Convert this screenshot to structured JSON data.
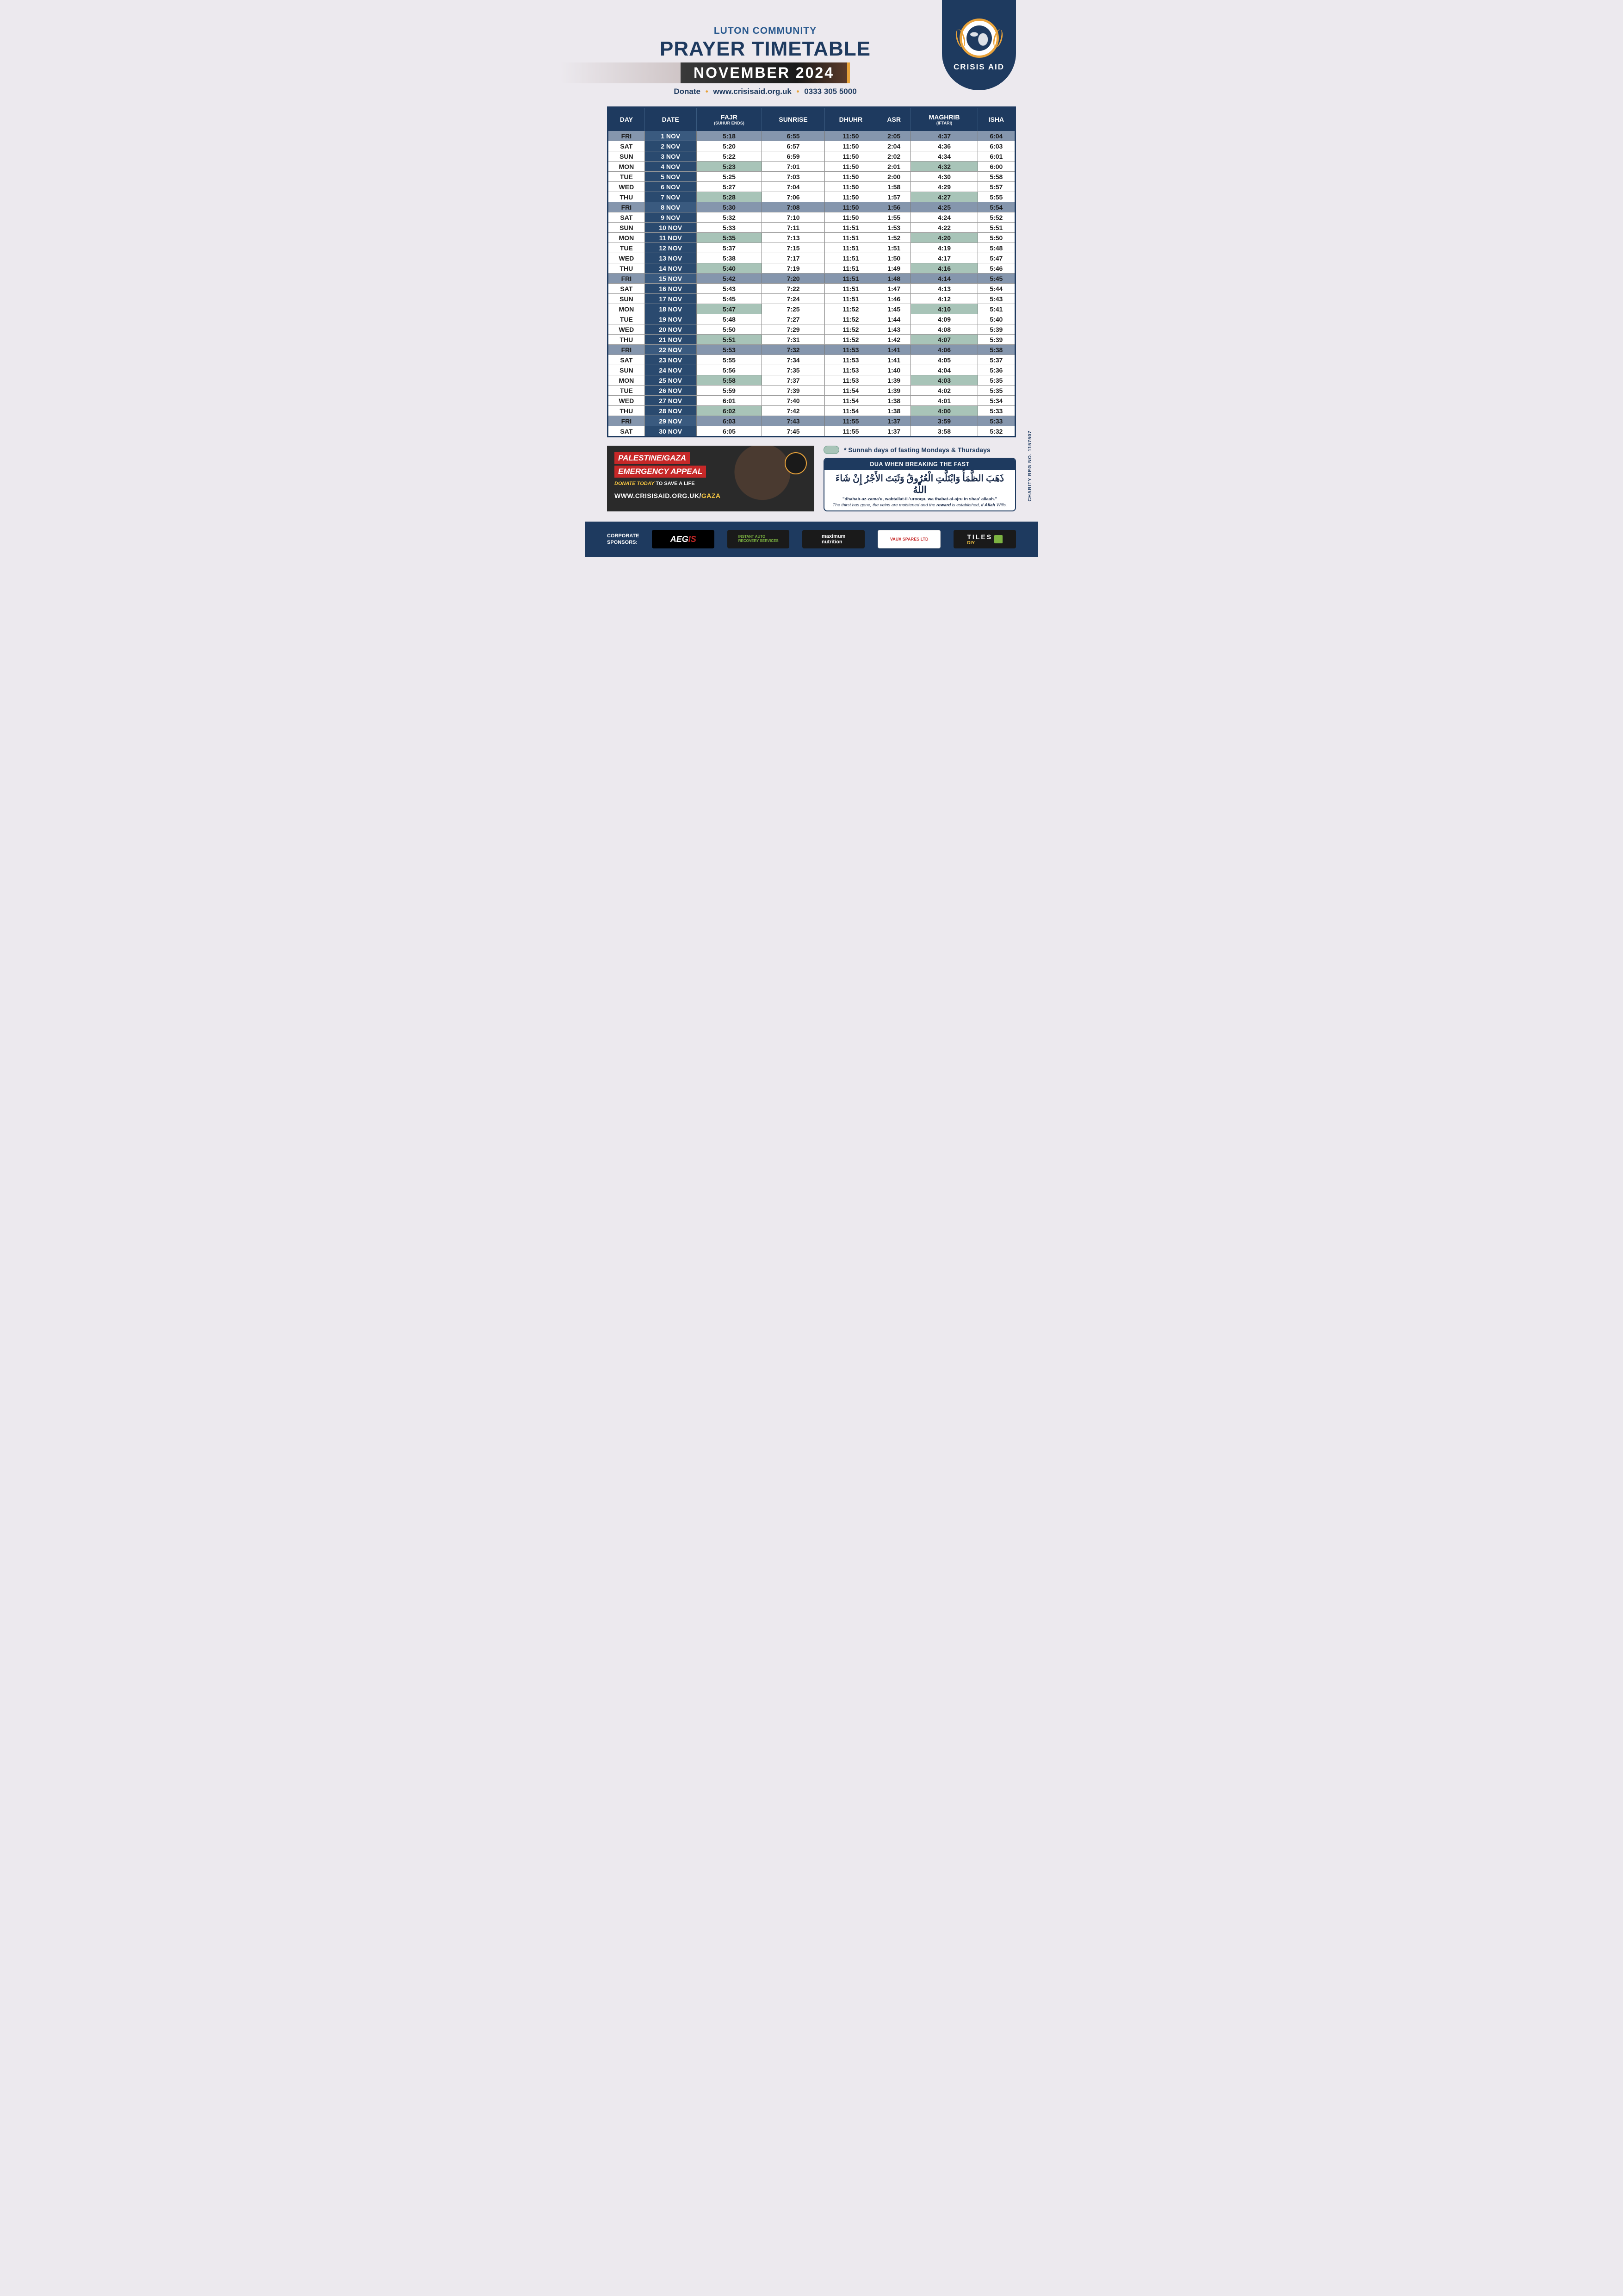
{
  "header": {
    "subtitle": "LUTON COMMUNITY",
    "title": "PRAYER TIMETABLE",
    "month": "NOVEMBER 2024",
    "donate_label": "Donate",
    "website": "www.crisisaid.org.uk",
    "phone": "0333 305 5000",
    "org_name": "CRISIS AID"
  },
  "table": {
    "columns": [
      {
        "label": "DAY"
      },
      {
        "label": "DATE"
      },
      {
        "label": "FAJR",
        "sub": "(SUHUR ENDS)"
      },
      {
        "label": "SUNRISE"
      },
      {
        "label": "DHUHR"
      },
      {
        "label": "ASR"
      },
      {
        "label": "MAGHRIB",
        "sub": "(IFTARI)"
      },
      {
        "label": "ISHA"
      }
    ],
    "rows": [
      {
        "day": "FRI",
        "date": "1 NOV",
        "fajr": "5:18",
        "sunrise": "6:55",
        "dhuhr": "11:50",
        "asr": "2:05",
        "maghrib": "4:37",
        "isha": "6:04",
        "friday": true
      },
      {
        "day": "SAT",
        "date": "2 NOV",
        "fajr": "5:20",
        "sunrise": "6:57",
        "dhuhr": "11:50",
        "asr": "2:04",
        "maghrib": "4:36",
        "isha": "6:03"
      },
      {
        "day": "SUN",
        "date": "3 NOV",
        "fajr": "5:22",
        "sunrise": "6:59",
        "dhuhr": "11:50",
        "asr": "2:02",
        "maghrib": "4:34",
        "isha": "6:01"
      },
      {
        "day": "MON",
        "date": "4 NOV",
        "fajr": "5:23",
        "sunrise": "7:01",
        "dhuhr": "11:50",
        "asr": "2:01",
        "maghrib": "4:32",
        "isha": "6:00",
        "sunnah": true
      },
      {
        "day": "TUE",
        "date": "5 NOV",
        "fajr": "5:25",
        "sunrise": "7:03",
        "dhuhr": "11:50",
        "asr": "2:00",
        "maghrib": "4:30",
        "isha": "5:58"
      },
      {
        "day": "WED",
        "date": "6 NOV",
        "fajr": "5:27",
        "sunrise": "7:04",
        "dhuhr": "11:50",
        "asr": "1:58",
        "maghrib": "4:29",
        "isha": "5:57"
      },
      {
        "day": "THU",
        "date": "7 NOV",
        "fajr": "5:28",
        "sunrise": "7:06",
        "dhuhr": "11:50",
        "asr": "1:57",
        "maghrib": "4:27",
        "isha": "5:55",
        "sunnah": true
      },
      {
        "day": "FRI",
        "date": "8 NOV",
        "fajr": "5:30",
        "sunrise": "7:08",
        "dhuhr": "11:50",
        "asr": "1:56",
        "maghrib": "4:25",
        "isha": "5:54",
        "friday": true
      },
      {
        "day": "SAT",
        "date": "9 NOV",
        "fajr": "5:32",
        "sunrise": "7:10",
        "dhuhr": "11:50",
        "asr": "1:55",
        "maghrib": "4:24",
        "isha": "5:52"
      },
      {
        "day": "SUN",
        "date": "10 NOV",
        "fajr": "5:33",
        "sunrise": "7:11",
        "dhuhr": "11:51",
        "asr": "1:53",
        "maghrib": "4:22",
        "isha": "5:51"
      },
      {
        "day": "MON",
        "date": "11 NOV",
        "fajr": "5:35",
        "sunrise": "7:13",
        "dhuhr": "11:51",
        "asr": "1:52",
        "maghrib": "4:20",
        "isha": "5:50",
        "sunnah": true
      },
      {
        "day": "TUE",
        "date": "12 NOV",
        "fajr": "5:37",
        "sunrise": "7:15",
        "dhuhr": "11:51",
        "asr": "1:51",
        "maghrib": "4:19",
        "isha": "5:48"
      },
      {
        "day": "WED",
        "date": "13 NOV",
        "fajr": "5:38",
        "sunrise": "7:17",
        "dhuhr": "11:51",
        "asr": "1:50",
        "maghrib": "4:17",
        "isha": "5:47"
      },
      {
        "day": "THU",
        "date": "14 NOV",
        "fajr": "5:40",
        "sunrise": "7:19",
        "dhuhr": "11:51",
        "asr": "1:49",
        "maghrib": "4:16",
        "isha": "5:46",
        "sunnah": true
      },
      {
        "day": "FRI",
        "date": "15 NOV",
        "fajr": "5:42",
        "sunrise": "7:20",
        "dhuhr": "11:51",
        "asr": "1:48",
        "maghrib": "4:14",
        "isha": "5:45",
        "friday": true
      },
      {
        "day": "SAT",
        "date": "16 NOV",
        "fajr": "5:43",
        "sunrise": "7:22",
        "dhuhr": "11:51",
        "asr": "1:47",
        "maghrib": "4:13",
        "isha": "5:44"
      },
      {
        "day": "SUN",
        "date": "17 NOV",
        "fajr": "5:45",
        "sunrise": "7:24",
        "dhuhr": "11:51",
        "asr": "1:46",
        "maghrib": "4:12",
        "isha": "5:43"
      },
      {
        "day": "MON",
        "date": "18 NOV",
        "fajr": "5:47",
        "sunrise": "7:25",
        "dhuhr": "11:52",
        "asr": "1:45",
        "maghrib": "4:10",
        "isha": "5:41",
        "sunnah": true
      },
      {
        "day": "TUE",
        "date": "19 NOV",
        "fajr": "5:48",
        "sunrise": "7:27",
        "dhuhr": "11:52",
        "asr": "1:44",
        "maghrib": "4:09",
        "isha": "5:40"
      },
      {
        "day": "WED",
        "date": "20 NOV",
        "fajr": "5:50",
        "sunrise": "7:29",
        "dhuhr": "11:52",
        "asr": "1:43",
        "maghrib": "4:08",
        "isha": "5:39"
      },
      {
        "day": "THU",
        "date": "21 NOV",
        "fajr": "5:51",
        "sunrise": "7:31",
        "dhuhr": "11:52",
        "asr": "1:42",
        "maghrib": "4:07",
        "isha": "5:39",
        "sunnah": true
      },
      {
        "day": "FRI",
        "date": "22 NOV",
        "fajr": "5:53",
        "sunrise": "7:32",
        "dhuhr": "11:53",
        "asr": "1:41",
        "maghrib": "4:06",
        "isha": "5:38",
        "friday": true
      },
      {
        "day": "SAT",
        "date": "23 NOV",
        "fajr": "5:55",
        "sunrise": "7:34",
        "dhuhr": "11:53",
        "asr": "1:41",
        "maghrib": "4:05",
        "isha": "5:37"
      },
      {
        "day": "SUN",
        "date": "24 NOV",
        "fajr": "5:56",
        "sunrise": "7:35",
        "dhuhr": "11:53",
        "asr": "1:40",
        "maghrib": "4:04",
        "isha": "5:36"
      },
      {
        "day": "MON",
        "date": "25 NOV",
        "fajr": "5:58",
        "sunrise": "7:37",
        "dhuhr": "11:53",
        "asr": "1:39",
        "maghrib": "4:03",
        "isha": "5:35",
        "sunnah": true
      },
      {
        "day": "TUE",
        "date": "26 NOV",
        "fajr": "5:59",
        "sunrise": "7:39",
        "dhuhr": "11:54",
        "asr": "1:39",
        "maghrib": "4:02",
        "isha": "5:35"
      },
      {
        "day": "WED",
        "date": "27 NOV",
        "fajr": "6:01",
        "sunrise": "7:40",
        "dhuhr": "11:54",
        "asr": "1:38",
        "maghrib": "4:01",
        "isha": "5:34"
      },
      {
        "day": "THU",
        "date": "28 NOV",
        "fajr": "6:02",
        "sunrise": "7:42",
        "dhuhr": "11:54",
        "asr": "1:38",
        "maghrib": "4:00",
        "isha": "5:33",
        "sunnah": true
      },
      {
        "day": "FRI",
        "date": "29 NOV",
        "fajr": "6:03",
        "sunrise": "7:43",
        "dhuhr": "11:55",
        "asr": "1:37",
        "maghrib": "3:59",
        "isha": "5:33",
        "friday": true
      },
      {
        "day": "SAT",
        "date": "30 NOV",
        "fajr": "6:05",
        "sunrise": "7:45",
        "dhuhr": "11:55",
        "asr": "1:37",
        "maghrib": "3:58",
        "isha": "5:32"
      }
    ]
  },
  "appeal": {
    "line1": "PALESTINE/GAZA",
    "line2": "EMERGENCY APPEAL",
    "sub_yellow": "DONATE TODAY",
    "sub_white": " TO SAVE A LIFE",
    "url_prefix": "WWW.CRISISAID.ORG.UK/",
    "url_suffix": "GAZA"
  },
  "sunnah_note": {
    "prefix": "* ",
    "b1": "Sunnah",
    "mid": " days of fasting ",
    "b2": "Mondays",
    "amp": " & ",
    "b3": "Thursdays"
  },
  "dua": {
    "heading": "DUA WHEN BREAKING THE FAST",
    "arabic": "ذَهَبَ الظَّمَأُ وَابْتَلَّتِ الْعُرُوقُ وَثَبَتَ الأَجْرُ إِنْ شَاءَ اللَّهُ",
    "translit": "\"dhahab-az-zama'u, wabtallat-il-'urooqu, wa thabat-al-ajru in shaa' allaah.\"",
    "trans_a": "The thirst has gone, the veins are moistened and the ",
    "trans_b": "reward",
    "trans_c": " is established, if ",
    "trans_d": "Allah",
    "trans_e": " Wills."
  },
  "charity_reg": "CHARITY REG NO. 1157507",
  "sponsors": {
    "label": "CORPORATE\nSPONSORS:",
    "aegis_a": "AEG",
    "aegis_b": "IS",
    "aegis_sub": "TRAINING",
    "instant": "INSTANT AUTO\nRECOVERY SERVICES",
    "max": "maximum\nnutrition",
    "vaux": "VAUX SPARES LTD",
    "tiles_a": "TILES",
    "tiles_b": "DIY"
  },
  "colors": {
    "primary": "#1e3a5f",
    "accent": "#e8a23a",
    "sunnah_bg": "#a8c4b8",
    "friday_bg": "#8596ad",
    "date_bg": "#2a4a6f",
    "page_bg": "#ece9ee",
    "appeal_red": "#c62828"
  }
}
